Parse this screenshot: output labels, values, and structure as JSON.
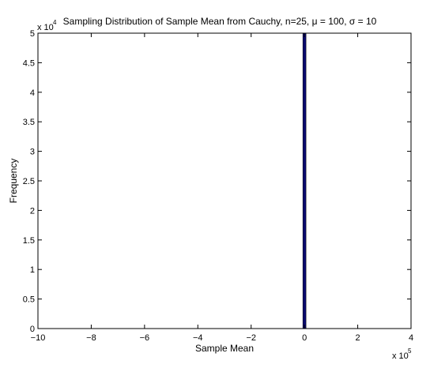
{
  "chart_data": {
    "type": "bar",
    "title": "Sampling Distribution of Sample Mean from Cauchy, n=25, μ = 100, σ = 10",
    "xlabel": "Sample Mean",
    "ylabel": "Frequency",
    "x_multiplier": "x 10",
    "x_multiplier_exp": "5",
    "y_multiplier": "x 10",
    "y_multiplier_exp": "4",
    "xlim": [
      -10,
      4
    ],
    "ylim": [
      0,
      5
    ],
    "x_ticks": [
      -10,
      -8,
      -6,
      -4,
      -2,
      0,
      2,
      4
    ],
    "x_tick_labels": [
      "−10",
      "−8",
      "−6",
      "−4",
      "−2",
      "0",
      "2",
      "4"
    ],
    "y_ticks": [
      0,
      0.5,
      1,
      1.5,
      2,
      2.5,
      3,
      3.5,
      4,
      4.5,
      5
    ],
    "y_tick_labels": [
      "0",
      "0.5",
      "1",
      "1.5",
      "2",
      "2.5",
      "3",
      "3.5",
      "4",
      "4.5",
      "5"
    ],
    "bars": [
      {
        "x_start": -0.05,
        "x_end": 0.05,
        "value": 5.0
      }
    ],
    "bar_color": "#0a0a6e",
    "grid": false
  }
}
